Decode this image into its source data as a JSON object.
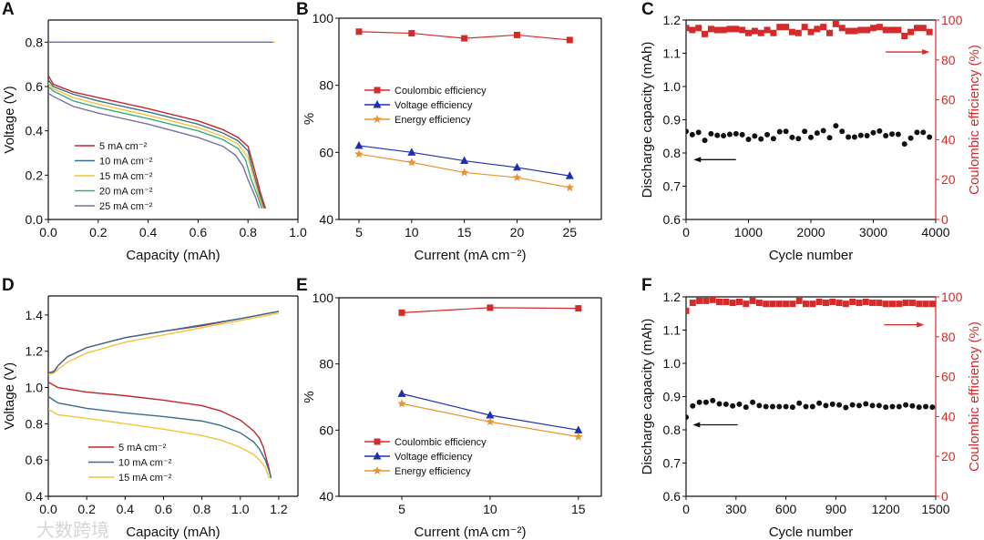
{
  "watermark": "大数跨境",
  "colors": {
    "red": "#d42a2a",
    "blue": "#1f2fb0",
    "orange": "#e8952e",
    "black": "#111111",
    "axis_red": "#d42a2a"
  },
  "chart_data": [
    {
      "panel": "A",
      "type": "line",
      "xlabel": "Capacity (mAh)",
      "ylabel": "Voltage (V)",
      "xlim": [
        0,
        1.0
      ],
      "ylim": [
        0,
        0.9
      ],
      "xticks": [
        "0.0",
        "0.2",
        "0.4",
        "0.6",
        "0.8",
        "1.0"
      ],
      "xtick_values": [
        0,
        0.2,
        0.4,
        0.6,
        0.8,
        1.0
      ],
      "yticks": [
        "0.0",
        "0.2",
        "0.4",
        "0.6",
        "0.8"
      ],
      "ytick_values": [
        0,
        0.2,
        0.4,
        0.6,
        0.8
      ],
      "legend_position": "lower-left",
      "series": [
        {
          "name": "5 mA cm⁻²",
          "color": "#c0272d",
          "x": [
            0,
            0.02,
            0.1,
            0.2,
            0.4,
            0.6,
            0.7,
            0.76,
            0.8,
            0.82,
            0.85,
            0.87
          ],
          "y": [
            0.65,
            0.61,
            0.575,
            0.55,
            0.5,
            0.445,
            0.405,
            0.37,
            0.33,
            0.25,
            0.12,
            0.05
          ],
          "charge_y": 0.8,
          "charge_xmax": 0.9
        },
        {
          "name": "10 mA cm⁻²",
          "color": "#3a6d8f",
          "x": [
            0,
            0.02,
            0.1,
            0.2,
            0.4,
            0.6,
            0.7,
            0.76,
            0.8,
            0.82,
            0.85,
            0.865
          ],
          "y": [
            0.63,
            0.6,
            0.565,
            0.535,
            0.485,
            0.43,
            0.39,
            0.355,
            0.31,
            0.22,
            0.1,
            0.05
          ],
          "charge_y": 0.8,
          "charge_xmax": 0.9
        },
        {
          "name": "15 mA cm⁻²",
          "color": "#f0c43c",
          "x": [
            0,
            0.02,
            0.1,
            0.2,
            0.4,
            0.6,
            0.7,
            0.76,
            0.8,
            0.82,
            0.845,
            0.86
          ],
          "y": [
            0.615,
            0.59,
            0.55,
            0.52,
            0.47,
            0.415,
            0.375,
            0.34,
            0.28,
            0.2,
            0.1,
            0.05
          ],
          "charge_y": 0.8,
          "charge_xmax": 0.91
        },
        {
          "name": "20 mA cm⁻²",
          "color": "#3daa7a",
          "x": [
            0,
            0.02,
            0.1,
            0.2,
            0.4,
            0.6,
            0.7,
            0.76,
            0.79,
            0.81,
            0.84,
            0.855
          ],
          "y": [
            0.6,
            0.58,
            0.535,
            0.505,
            0.455,
            0.4,
            0.36,
            0.32,
            0.27,
            0.19,
            0.1,
            0.05
          ],
          "charge_y": 0.8,
          "charge_xmax": 0.9
        },
        {
          "name": "25 mA cm⁻²",
          "color": "#7a6fa5",
          "x": [
            0,
            0.02,
            0.1,
            0.2,
            0.4,
            0.6,
            0.7,
            0.75,
            0.78,
            0.8,
            0.83,
            0.845
          ],
          "y": [
            0.57,
            0.555,
            0.51,
            0.48,
            0.43,
            0.37,
            0.33,
            0.29,
            0.24,
            0.18,
            0.1,
            0.05
          ],
          "charge_y": 0.8,
          "charge_xmax": 0.9
        }
      ]
    },
    {
      "panel": "B",
      "type": "line",
      "xlabel": "Current (mA cm⁻²)",
      "ylabel": "%",
      "xlim": [
        3.1,
        28
      ],
      "ylim": [
        40,
        100
      ],
      "xticks": [
        "5",
        "10",
        "15",
        "20",
        "25"
      ],
      "xtick_values": [
        5,
        10,
        15,
        20,
        25
      ],
      "yticks": [
        "40",
        "60",
        "80",
        "100"
      ],
      "ytick_values": [
        40,
        60,
        80,
        100
      ],
      "legend_position": "center-left",
      "series": [
        {
          "name": "Coulombic efficiency",
          "color": "#d42a2a",
          "marker": "square",
          "x": [
            5,
            10,
            15,
            20,
            25
          ],
          "y": [
            96,
            95.5,
            94,
            95,
            93.5
          ]
        },
        {
          "name": "Voltage efficiency",
          "color": "#1f2fb0",
          "marker": "triangle",
          "x": [
            5,
            10,
            15,
            20,
            25
          ],
          "y": [
            62,
            60,
            57.5,
            55.5,
            53
          ]
        },
        {
          "name": "Energy efficiency",
          "color": "#e8952e",
          "marker": "star",
          "x": [
            5,
            10,
            15,
            20,
            25
          ],
          "y": [
            59.5,
            57,
            54,
            52.5,
            49.5
          ]
        }
      ]
    },
    {
      "panel": "C",
      "type": "scatter",
      "xlabel": "Cycle number",
      "ylabel": "Discharge capacity (mAh)",
      "y2label": "Coulombic efficiency (%)",
      "xlim": [
        0,
        4000
      ],
      "ylim": [
        0.6,
        1.2
      ],
      "y2lim": [
        0,
        100
      ],
      "xticks": [
        "0",
        "1000",
        "2000",
        "3000",
        "4000"
      ],
      "xtick_values": [
        0,
        1000,
        2000,
        3000,
        4000
      ],
      "yticks": [
        "0.6",
        "0.7",
        "0.8",
        "0.9",
        "1.0",
        "1.1",
        "1.2"
      ],
      "ytick_values": [
        0.6,
        0.7,
        0.8,
        0.9,
        1.0,
        1.1,
        1.2
      ],
      "y2ticks": [
        "0",
        "20",
        "40",
        "60",
        "80",
        "100"
      ],
      "y2tick_values": [
        0,
        20,
        40,
        60,
        80,
        100
      ],
      "x_start": 0,
      "x_step": 100,
      "capacity": [
        0.865,
        0.855,
        0.862,
        0.838,
        0.858,
        0.853,
        0.852,
        0.856,
        0.858,
        0.855,
        0.841,
        0.851,
        0.842,
        0.855,
        0.843,
        0.864,
        0.865,
        0.847,
        0.843,
        0.865,
        0.847,
        0.86,
        0.867,
        0.846,
        0.882,
        0.865,
        0.848,
        0.848,
        0.853,
        0.852,
        0.861,
        0.866,
        0.852,
        0.857,
        0.856,
        0.827,
        0.845,
        0.862,
        0.862,
        0.848
      ],
      "coulombic_efficiency": [
        96,
        95,
        96,
        93,
        95.5,
        95,
        95,
        95.5,
        95.5,
        95,
        93.5,
        94.5,
        93.5,
        95,
        93.5,
        96.5,
        96.5,
        94,
        93.5,
        96.5,
        94,
        95.5,
        96.5,
        93.5,
        98,
        96,
        94.5,
        94.5,
        95,
        95,
        96,
        96.5,
        95,
        95,
        95,
        92,
        94,
        96,
        96,
        94
      ],
      "arrow_left_at": {
        "y": 0.78,
        "x_from": 800,
        "x_to": 120
      },
      "arrow_right_at": {
        "y2": 84,
        "x_from": 3200,
        "x_to": 3900
      }
    },
    {
      "panel": "D",
      "type": "line",
      "xlabel": "Capacity (mAh)",
      "ylabel": "Voltage (V)",
      "xlim": [
        0,
        1.3
      ],
      "ylim": [
        0.4,
        1.505
      ],
      "xticks": [
        "0.0",
        "0.2",
        "0.4",
        "0.6",
        "0.8",
        "1.0",
        "1.2"
      ],
      "xtick_values": [
        0,
        0.2,
        0.4,
        0.6,
        0.8,
        1.0,
        1.2
      ],
      "yticks": [
        "0.4",
        "0.6",
        "0.8",
        "1.0",
        "1.2",
        "1.4"
      ],
      "ytick_values": [
        0.4,
        0.6,
        0.8,
        1.0,
        1.2,
        1.4
      ],
      "legend_position": "lower-left",
      "series": [
        {
          "name": "5 mA cm⁻²",
          "color": "#c0272d",
          "charge_x": [
            0,
            0.03,
            0.05,
            0.1,
            0.2,
            0.4,
            0.6,
            0.8,
            1.0,
            1.2
          ],
          "charge_y": [
            1.08,
            1.09,
            1.12,
            1.17,
            1.22,
            1.275,
            1.31,
            1.34,
            1.38,
            1.42
          ],
          "x": [
            0,
            0.05,
            0.2,
            0.4,
            0.6,
            0.8,
            0.9,
            1.0,
            1.07,
            1.1,
            1.12,
            1.15,
            1.16
          ],
          "y": [
            1.03,
            1.0,
            0.975,
            0.955,
            0.93,
            0.9,
            0.87,
            0.82,
            0.76,
            0.72,
            0.67,
            0.55,
            0.5
          ]
        },
        {
          "name": "10 mA cm⁻²",
          "color": "#3a6d8f",
          "charge_x": [
            0,
            0.03,
            0.05,
            0.1,
            0.2,
            0.4,
            0.6,
            0.8,
            1.0,
            1.2
          ],
          "charge_y": [
            1.08,
            1.085,
            1.12,
            1.17,
            1.22,
            1.275,
            1.31,
            1.345,
            1.38,
            1.42
          ],
          "x": [
            0,
            0.05,
            0.2,
            0.4,
            0.6,
            0.8,
            0.9,
            1.0,
            1.07,
            1.1,
            1.13,
            1.15,
            1.16
          ],
          "y": [
            0.95,
            0.915,
            0.885,
            0.86,
            0.84,
            0.815,
            0.79,
            0.75,
            0.7,
            0.66,
            0.6,
            0.54,
            0.5
          ]
        },
        {
          "name": "15 mA cm⁻²",
          "color": "#f0c43c",
          "charge_x": [
            0,
            0.03,
            0.05,
            0.1,
            0.2,
            0.4,
            0.6,
            0.8,
            1.0,
            1.2
          ],
          "charge_y": [
            1.07,
            1.08,
            1.1,
            1.14,
            1.19,
            1.25,
            1.29,
            1.33,
            1.37,
            1.41
          ],
          "x": [
            0,
            0.05,
            0.2,
            0.4,
            0.6,
            0.8,
            0.9,
            1.0,
            1.07,
            1.1,
            1.13,
            1.15
          ],
          "y": [
            0.88,
            0.85,
            0.83,
            0.8,
            0.77,
            0.735,
            0.71,
            0.67,
            0.63,
            0.6,
            0.56,
            0.5
          ]
        }
      ]
    },
    {
      "panel": "E",
      "type": "line",
      "xlabel": "Current (mA cm⁻²)",
      "ylabel": "%",
      "xlim": [
        1.44,
        16.3
      ],
      "ylim": [
        40,
        100
      ],
      "xticks": [
        "5",
        "10",
        "15"
      ],
      "xtick_values": [
        5,
        10,
        15
      ],
      "yticks": [
        "40",
        "60",
        "80",
        "100"
      ],
      "ytick_values": [
        40,
        60,
        80,
        100
      ],
      "legend_position": "lower-left",
      "series": [
        {
          "name": "Coulombic efficiency",
          "color": "#d42a2a",
          "marker": "square",
          "x": [
            5,
            10,
            15
          ],
          "y": [
            95.5,
            97,
            96.8
          ]
        },
        {
          "name": "Voltage efficiency",
          "color": "#1f2fb0",
          "marker": "triangle",
          "x": [
            5,
            10,
            15
          ],
          "y": [
            71,
            64.5,
            60
          ]
        },
        {
          "name": "Energy efficiency",
          "color": "#e8952e",
          "marker": "star",
          "x": [
            5,
            10,
            15
          ],
          "y": [
            68,
            62.5,
            58
          ]
        }
      ]
    },
    {
      "panel": "F",
      "type": "scatter",
      "xlabel": "Cycle number",
      "ylabel": "Discharge capacity (mAh)",
      "y2label": "Coulombic efficiency (%)",
      "xlim": [
        0,
        1500
      ],
      "ylim": [
        0.6,
        1.2
      ],
      "y2lim": [
        0,
        100
      ],
      "xticks": [
        "0",
        "300",
        "600",
        "900",
        "1200",
        "1500"
      ],
      "xtick_values": [
        0,
        300,
        600,
        900,
        1200,
        1500
      ],
      "yticks": [
        "0.6",
        "0.7",
        "0.8",
        "0.9",
        "1.0",
        "1.1",
        "1.2"
      ],
      "ytick_values": [
        0.6,
        0.7,
        0.8,
        0.9,
        1.0,
        1.1,
        1.2
      ],
      "y2ticks": [
        "0",
        "20",
        "40",
        "60",
        "80",
        "100"
      ],
      "y2tick_values": [
        0,
        20,
        40,
        60,
        80,
        100
      ],
      "x_start": 0,
      "x_step": 40,
      "capacity": [
        0.838,
        0.872,
        0.883,
        0.883,
        0.888,
        0.878,
        0.877,
        0.872,
        0.877,
        0.868,
        0.883,
        0.873,
        0.87,
        0.87,
        0.87,
        0.87,
        0.868,
        0.88,
        0.87,
        0.87,
        0.88,
        0.873,
        0.877,
        0.875,
        0.867,
        0.875,
        0.873,
        0.878,
        0.873,
        0.873,
        0.868,
        0.87,
        0.87,
        0.875,
        0.872,
        0.868,
        0.87,
        0.868
      ],
      "coulombic_efficiency": [
        93,
        97,
        98,
        98,
        98.5,
        97.5,
        97.5,
        97,
        97.5,
        96.5,
        98,
        97,
        96.5,
        96.5,
        96.5,
        96.5,
        96.5,
        98,
        96.5,
        96.5,
        97.5,
        97,
        97.5,
        97,
        96.5,
        97.5,
        97,
        97.5,
        97,
        97,
        96.5,
        96.5,
        96.5,
        97,
        97,
        96.5,
        96.5,
        96.5
      ],
      "arrow_left_at": {
        "y": 0.815,
        "x_from": 310,
        "x_to": 40
      },
      "arrow_right_at": {
        "y2": 86,
        "x_from": 1190,
        "x_to": 1430
      }
    }
  ]
}
